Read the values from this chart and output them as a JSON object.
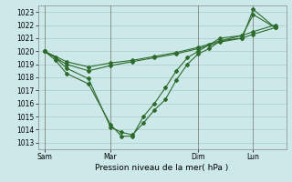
{
  "title": "Pression niveau de la mer( hPa )",
  "ylabel_values": [
    1013,
    1014,
    1015,
    1016,
    1017,
    1018,
    1019,
    1020,
    1021,
    1022,
    1023
  ],
  "ylim": [
    1012.5,
    1023.5
  ],
  "bg_color": "#cce8e8",
  "grid_color": "#aacccc",
  "line_color": "#2d6b2d",
  "xtick_labels": [
    "Sam",
    "Mar",
    "Dim",
    "Lun"
  ],
  "xtick_positions": [
    0,
    3,
    7,
    9.5
  ],
  "vline_positions": [
    0,
    3,
    7,
    9.5
  ],
  "series_dip1": {
    "x": [
      0,
      0.5,
      1,
      2,
      3,
      3.5,
      4,
      4.5,
      5,
      5.5,
      6,
      6.5,
      7,
      7.5,
      8,
      9,
      9.5,
      10.5
    ],
    "y": [
      1020.0,
      1019.5,
      1018.7,
      1017.9,
      1014.2,
      1013.8,
      1013.6,
      1014.5,
      1015.5,
      1016.3,
      1017.8,
      1019.0,
      1019.8,
      1020.2,
      1020.8,
      1021.0,
      1023.2,
      1021.8
    ]
  },
  "series_dip2": {
    "x": [
      0,
      0.5,
      1,
      2,
      3,
      3.5,
      4,
      4.5,
      5,
      5.5,
      6,
      6.5,
      7,
      7.5,
      8,
      9,
      9.5,
      10.5
    ],
    "y": [
      1020.0,
      1019.3,
      1018.3,
      1017.5,
      1014.4,
      1013.5,
      1013.5,
      1015.0,
      1016.0,
      1017.2,
      1018.5,
      1019.5,
      1020.0,
      1020.5,
      1021.0,
      1021.2,
      1022.8,
      1021.8
    ]
  },
  "series_flat1": {
    "x": [
      0,
      1,
      2,
      3,
      4,
      5,
      6,
      7,
      8,
      9,
      9.5,
      10.5
    ],
    "y": [
      1020.0,
      1019.2,
      1018.8,
      1019.1,
      1019.3,
      1019.6,
      1019.9,
      1020.3,
      1020.8,
      1021.2,
      1021.5,
      1022.0
    ]
  },
  "series_flat2": {
    "x": [
      0,
      1,
      2,
      3,
      4,
      5,
      6,
      7,
      8,
      9,
      9.5,
      10.5
    ],
    "y": [
      1020.0,
      1019.0,
      1018.5,
      1018.9,
      1019.2,
      1019.5,
      1019.8,
      1020.2,
      1020.7,
      1021.0,
      1021.3,
      1021.8
    ]
  }
}
